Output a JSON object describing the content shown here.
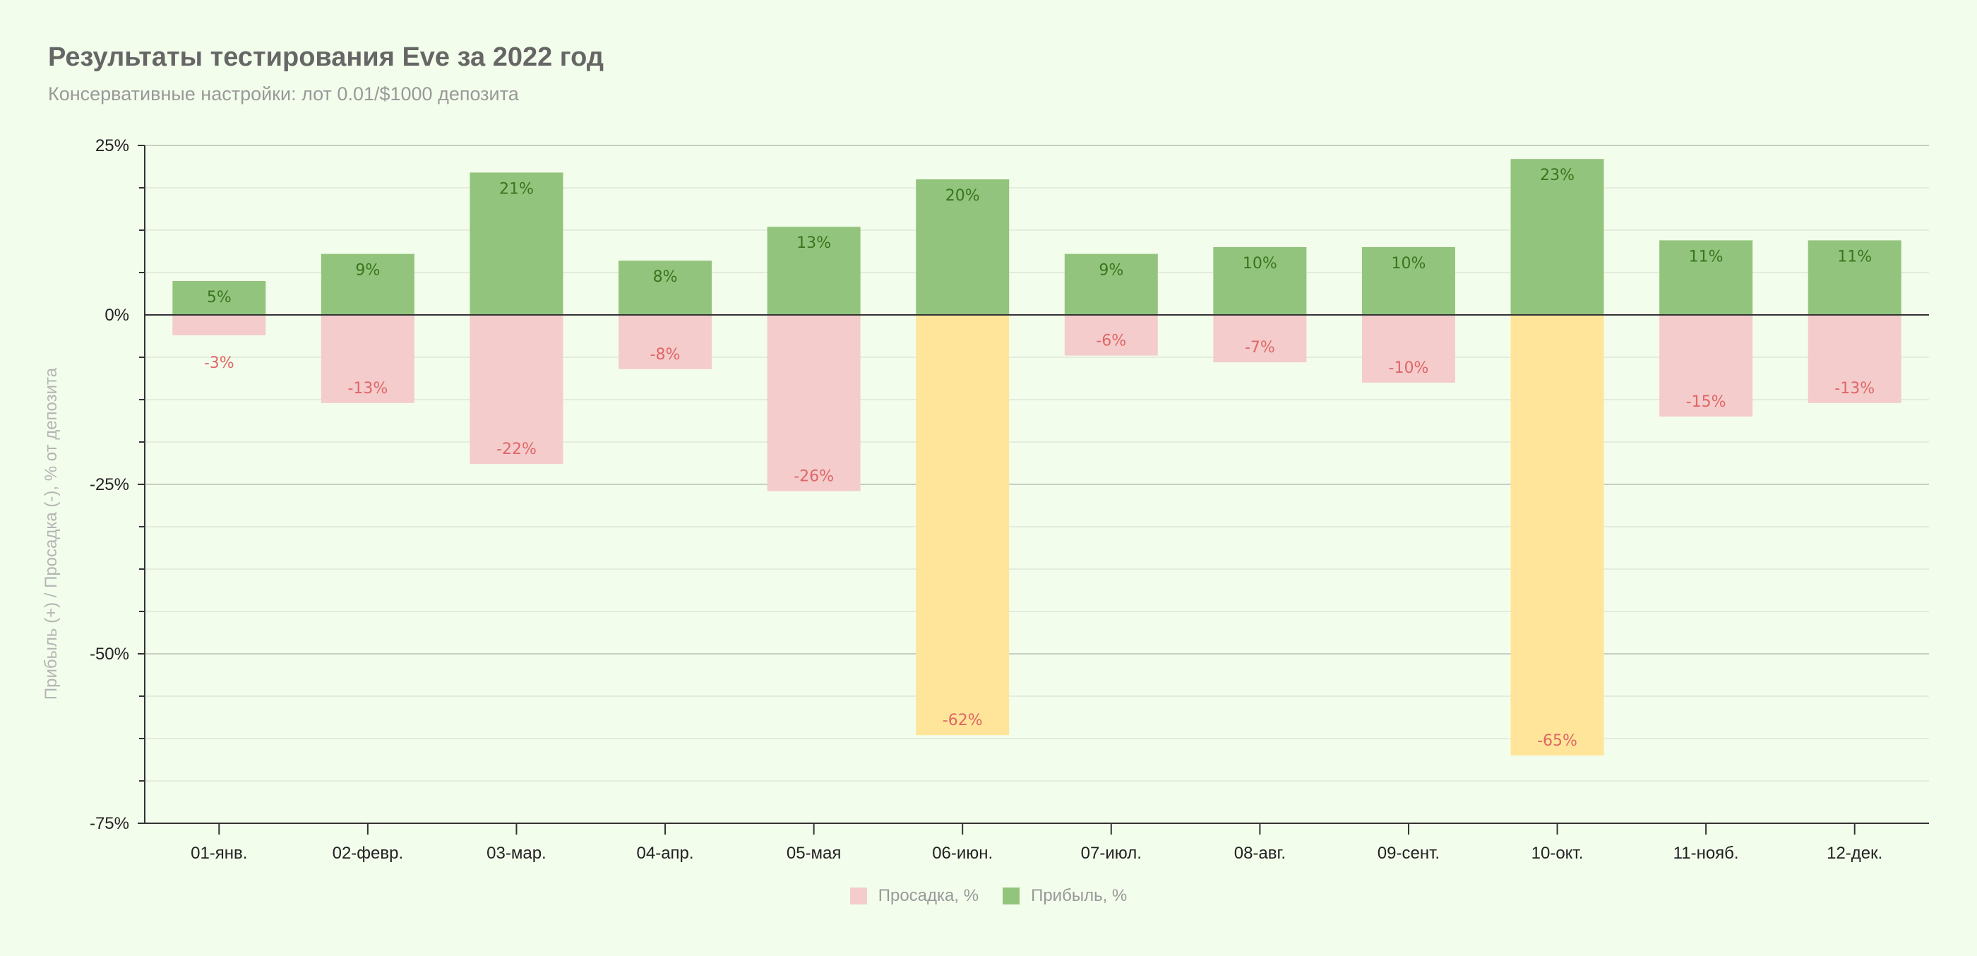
{
  "title": "Результаты тестирования Eve за 2022 год",
  "subtitle": "Консервативные настройки: лот 0.01/$1000 депозита",
  "colors": {
    "profit": "#93c47d",
    "drawdown": "#f4cccc",
    "drawdown_highlight": "#ffe599",
    "profit_label": "#38761d",
    "drawdown_label": "#e06666",
    "background": "#f3fdec"
  },
  "chart_data": {
    "type": "bar",
    "title": "Результаты тестирования Eve за 2022 год",
    "subtitle": "Консервативные настройки: лот 0.01/$1000 депозита",
    "xlabel": "",
    "ylabel": "Прибыль (+) / Просадка (-), % от депозита",
    "ylim": [
      -75,
      25
    ],
    "y_ticks": [
      25,
      0,
      -25,
      -50,
      -75
    ],
    "y_tick_labels": [
      "25%",
      "0%",
      "-25%",
      "-50%",
      "-75%"
    ],
    "grid": true,
    "stacked": true,
    "categories": [
      "01-янв.",
      "02-февр.",
      "03-мар.",
      "04-апр.",
      "05-мая",
      "06-июн.",
      "07-июл.",
      "08-авг.",
      "09-сент.",
      "10-окт.",
      "11-нояб.",
      "12-дек."
    ],
    "series": [
      {
        "name": "Просадка, %",
        "values": [
          -3,
          -13,
          -22,
          -8,
          -26,
          -62,
          -6,
          -7,
          -10,
          -65,
          -15,
          -13
        ],
        "labels": [
          "-3%",
          "-13%",
          "-22%",
          "-8%",
          "-26%",
          "-62%",
          "-6%",
          "-7%",
          "-10%",
          "-65%",
          "-15%",
          "-13%"
        ],
        "highlighted_indices": [
          5,
          9
        ]
      },
      {
        "name": "Прибыль, %",
        "values": [
          5,
          9,
          21,
          8,
          13,
          20,
          9,
          10,
          10,
          23,
          11,
          11
        ],
        "labels": [
          "5%",
          "9%",
          "21%",
          "8%",
          "13%",
          "20%",
          "9%",
          "10%",
          "10%",
          "23%",
          "11%",
          "11%"
        ]
      }
    ],
    "legend": {
      "position": "bottom",
      "items": [
        "Просадка, %",
        "Прибыль, %"
      ]
    }
  }
}
